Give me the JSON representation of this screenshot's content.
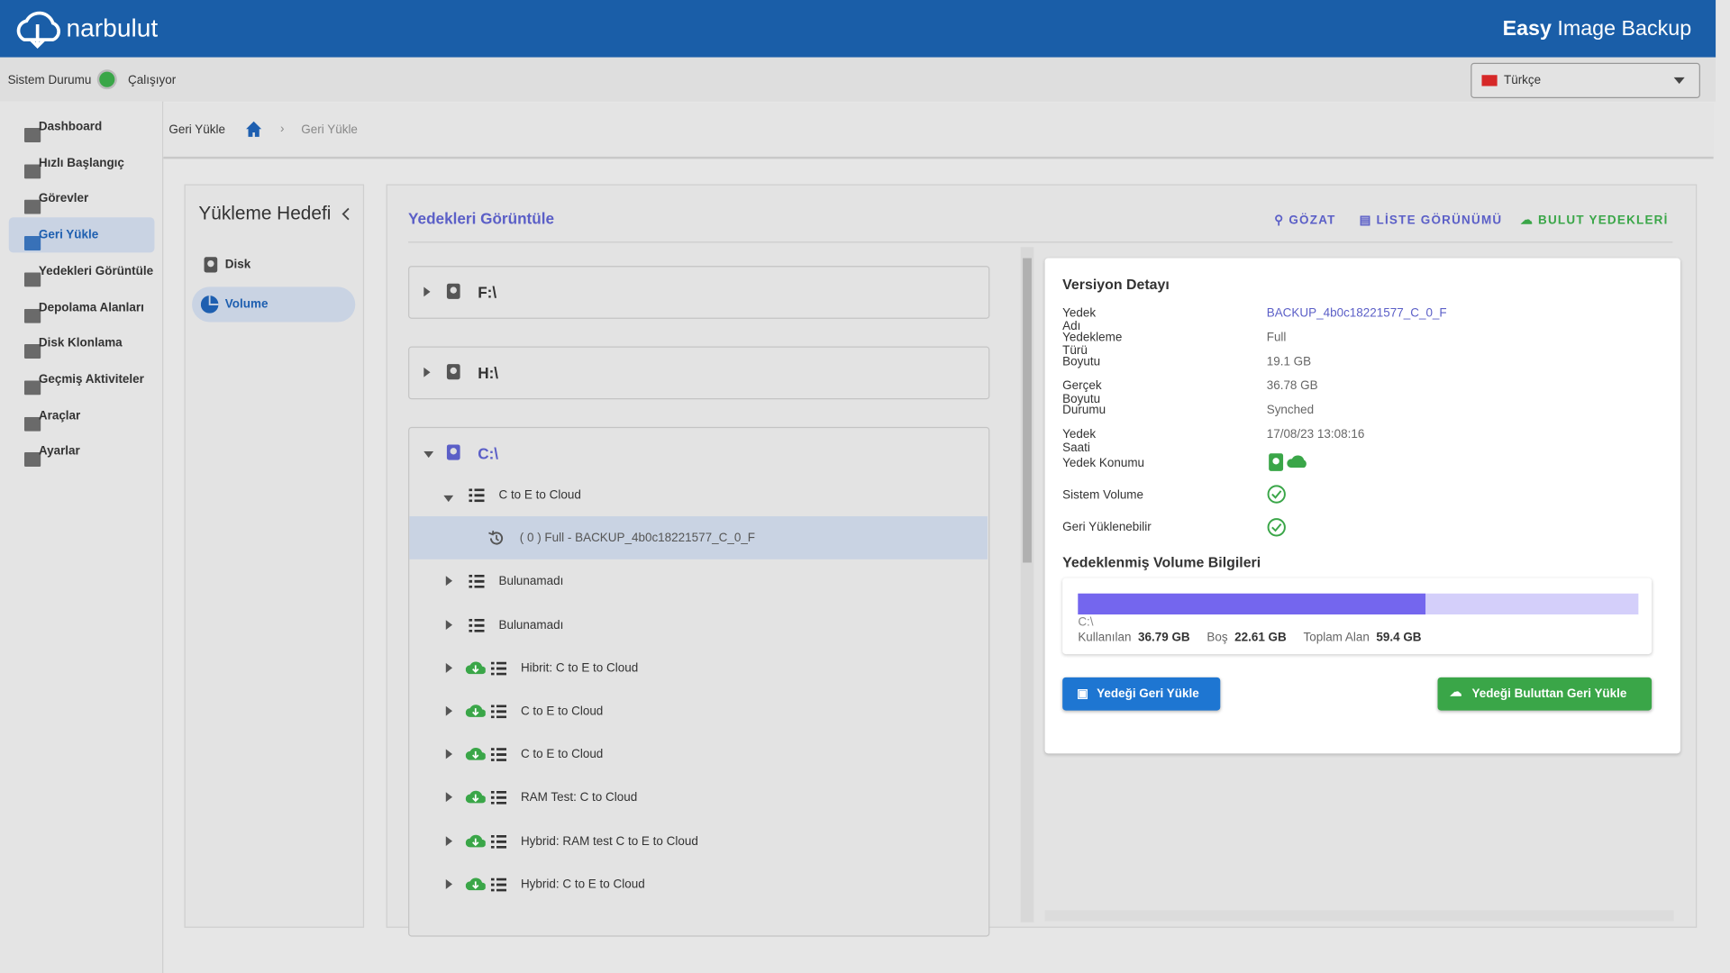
{
  "header": {
    "brand": "narbulut",
    "product_bold": "Easy",
    "product": "Image Backup"
  },
  "status": {
    "label": "Sistem Durumu",
    "value": "Çalışıyor",
    "language": "Türkçe"
  },
  "sidebar": [
    "Dashboard",
    "Hızlı Başlangıç",
    "Görevler",
    "Geri Yükle",
    "Yedekleri Görüntüle",
    "Depolama Alanları",
    "Disk Klonlama",
    "Geçmiş Aktiviteler",
    "Araçlar",
    "Ayarlar"
  ],
  "breadcrumb": {
    "page": "Geri Yükle",
    "trail": "Geri Yükle"
  },
  "target_panel": {
    "title": "Yükleme Hedefi",
    "options": [
      "Disk",
      "Volume"
    ]
  },
  "main": {
    "title": "Yedekleri Görüntüle",
    "actions": [
      "GÖZAT",
      "LİSTE GÖRÜNÜMÜ",
      "BULUT YEDEKLERİ"
    ]
  },
  "tree": {
    "drives": [
      "F:\\",
      "H:\\",
      "C:\\"
    ],
    "version": "( 0 ) Full - BACKUP_4b0c18221577_C_0_F",
    "children": [
      {
        "label": "C to E to Cloud",
        "cloud": false
      },
      {
        "label": "Bulunamadı",
        "cloud": false
      },
      {
        "label": "Bulunamadı",
        "cloud": false
      },
      {
        "label": "Hibrit: C to E to Cloud",
        "cloud": true
      },
      {
        "label": "C to E to Cloud",
        "cloud": true
      },
      {
        "label": "C to E to Cloud",
        "cloud": true
      },
      {
        "label": "RAM Test: C to Cloud",
        "cloud": true
      },
      {
        "label": "Hybrid: RAM test C to E to Cloud",
        "cloud": true
      },
      {
        "label": "Hybrid: C to E to Cloud",
        "cloud": true
      }
    ]
  },
  "detail": {
    "title": "Versiyon Detayı",
    "fields": [
      [
        "Yedek Adı",
        "BACKUP_4b0c18221577_C_0_F"
      ],
      [
        "Yedekleme Türü",
        "Full"
      ],
      [
        "Boyutu",
        "19.1 GB"
      ],
      [
        "Gerçek Boyutu",
        "36.78 GB"
      ],
      [
        "Durumu",
        "Synched"
      ],
      [
        "Yedek Saati",
        "17/08/23 13:08:16"
      ]
    ],
    "location_label": "Yedek Konumu",
    "system_volume_label": "Sistem Volume",
    "restorable_label": "Geri Yüklenebilir",
    "volume_title": "Yedeklenmiş Volume Bilgileri",
    "volume": {
      "name": "C:\\",
      "used_label": "Kullanılan",
      "used": {
        "value": 36.79,
        "label": "36.79 GB"
      },
      "free_label": "Boş",
      "free": {
        "value": 22.61,
        "label": "22.61 GB"
      },
      "total_label": "Toplam Alan",
      "total": {
        "value": 59.4,
        "label": "59.4 GB"
      }
    },
    "buttons": [
      "Yedeği Geri Yükle",
      "Yedeği Buluttan Geri Yükle"
    ]
  }
}
